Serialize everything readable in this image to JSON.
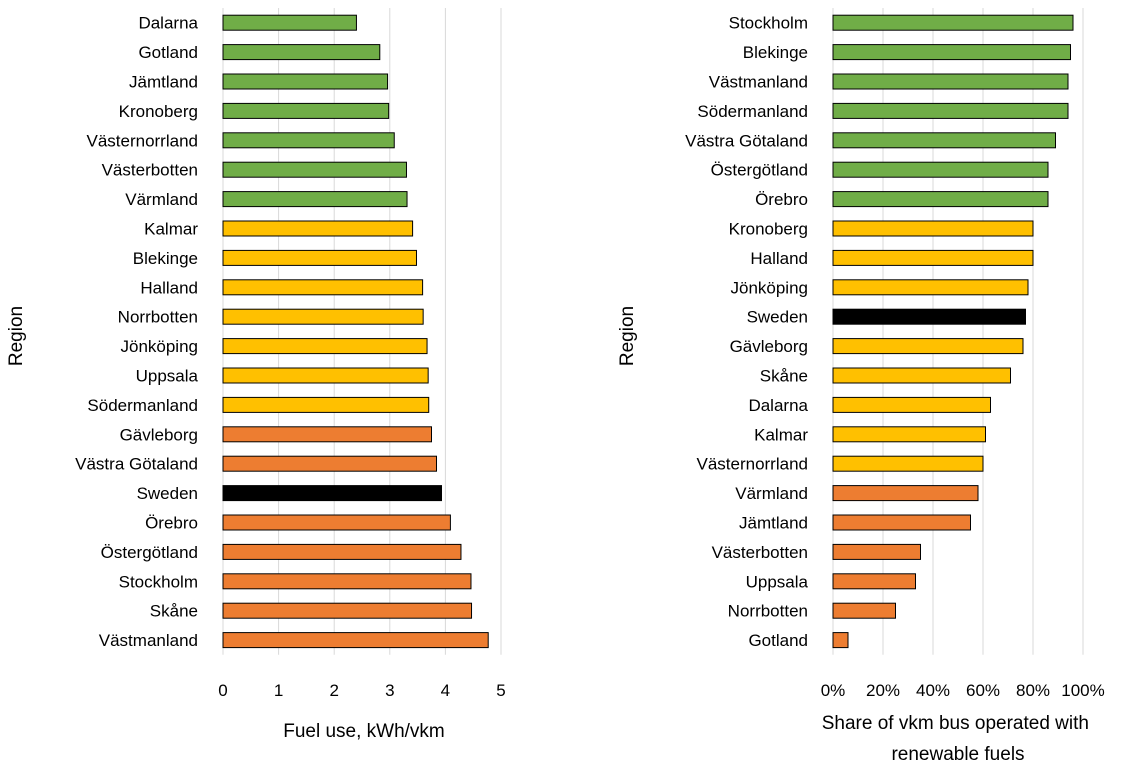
{
  "colors": {
    "green": "#70AD47",
    "yellow": "#FFC000",
    "orange": "#ED7D31",
    "black": "#000000",
    "grid": "#D9D9D9"
  },
  "chart_data": [
    {
      "type": "bar",
      "orientation": "horizontal",
      "ylabel": "Region",
      "xlabel": "Fuel use, kWh/vkm",
      "xlim": [
        0,
        5
      ],
      "xticks": [
        "0",
        "1",
        "2",
        "3",
        "4",
        "5"
      ],
      "grid": true,
      "categories": [
        "Dalarna",
        "Gotland",
        "Jämtland",
        "Kronoberg",
        "Västernorrland",
        "Västerbotten",
        "Värmland",
        "Kalmar",
        "Blekinge",
        "Halland",
        "Norrbotten",
        "Jönköping",
        "Uppsala",
        "Södermanland",
        "Gävleborg",
        "Västra Götaland",
        "Sweden",
        "Örebro",
        "Östergötland",
        "Stockholm",
        "Skåne",
        "Västmanland"
      ],
      "values": [
        2.4,
        2.82,
        2.96,
        2.98,
        3.08,
        3.3,
        3.31,
        3.41,
        3.48,
        3.59,
        3.6,
        3.67,
        3.69,
        3.7,
        3.75,
        3.84,
        3.93,
        4.09,
        4.28,
        4.46,
        4.47,
        4.77
      ],
      "bar_colors": [
        "green",
        "green",
        "green",
        "green",
        "green",
        "green",
        "green",
        "yellow",
        "yellow",
        "yellow",
        "yellow",
        "yellow",
        "yellow",
        "yellow",
        "orange",
        "orange",
        "black",
        "orange",
        "orange",
        "orange",
        "orange",
        "orange"
      ]
    },
    {
      "type": "bar",
      "orientation": "horizontal",
      "ylabel": "Region",
      "xlabel": "Share of vkm bus operated with renewable fuels",
      "xlabel_lines": [
        "Share of vkm bus operated with",
        "renewable fuels"
      ],
      "xlim": [
        0,
        100
      ],
      "xticks": [
        "0%",
        "20%",
        "40%",
        "60%",
        "80%",
        "100%"
      ],
      "grid": true,
      "categories": [
        "Stockholm",
        "Blekinge",
        "Västmanland",
        "Södermanland",
        "Västra Götaland",
        "Östergötland",
        "Örebro",
        "Kronoberg",
        "Halland",
        "Jönköping",
        "Sweden",
        "Gävleborg",
        "Skåne",
        "Dalarna",
        "Kalmar",
        "Västernorrland",
        "Värmland",
        "Jämtland",
        "Västerbotten",
        "Uppsala",
        "Norrbotten",
        "Gotland"
      ],
      "values": [
        96,
        95,
        94,
        94,
        89,
        86,
        86,
        80,
        80,
        78,
        77,
        76,
        71,
        63,
        61,
        60,
        58,
        55,
        35,
        33,
        25,
        6
      ],
      "bar_colors": [
        "green",
        "green",
        "green",
        "green",
        "green",
        "green",
        "green",
        "yellow",
        "yellow",
        "yellow",
        "black",
        "yellow",
        "yellow",
        "yellow",
        "yellow",
        "yellow",
        "orange",
        "orange",
        "orange",
        "orange",
        "orange",
        "orange"
      ]
    }
  ]
}
